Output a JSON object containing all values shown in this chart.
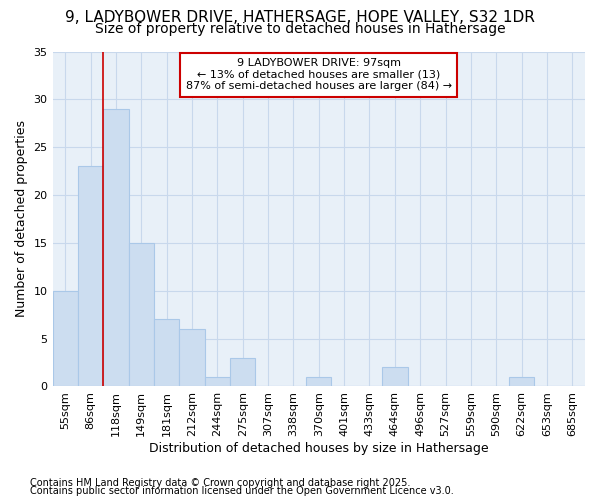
{
  "title_line1": "9, LADYBOWER DRIVE, HATHERSAGE, HOPE VALLEY, S32 1DR",
  "title_line2": "Size of property relative to detached houses in Hathersage",
  "xlabel": "Distribution of detached houses by size in Hathersage",
  "ylabel": "Number of detached properties",
  "categories": [
    "55sqm",
    "86sqm",
    "118sqm",
    "149sqm",
    "181sqm",
    "212sqm",
    "244sqm",
    "275sqm",
    "307sqm",
    "338sqm",
    "370sqm",
    "401sqm",
    "433sqm",
    "464sqm",
    "496sqm",
    "527sqm",
    "559sqm",
    "590sqm",
    "622sqm",
    "653sqm",
    "685sqm"
  ],
  "values": [
    10,
    23,
    29,
    15,
    7,
    6,
    1,
    3,
    0,
    0,
    1,
    0,
    0,
    2,
    0,
    0,
    0,
    0,
    1,
    0,
    0
  ],
  "bar_color": "#ccddf0",
  "bar_edge_color": "#aac8e8",
  "grid_color": "#c8d8ec",
  "plot_bg_color": "#e8f0f8",
  "fig_bg_color": "#ffffff",
  "red_line_index": 2,
  "annotation_text": "9 LADYBOWER DRIVE: 97sqm\n← 13% of detached houses are smaller (13)\n87% of semi-detached houses are larger (84) →",
  "annotation_box_color": "#ffffff",
  "annotation_edge_color": "#cc0000",
  "ylim": [
    0,
    35
  ],
  "yticks": [
    0,
    5,
    10,
    15,
    20,
    25,
    30,
    35
  ],
  "footer_line1": "Contains HM Land Registry data © Crown copyright and database right 2025.",
  "footer_line2": "Contains public sector information licensed under the Open Government Licence v3.0.",
  "title_fontsize": 11,
  "subtitle_fontsize": 10,
  "axis_label_fontsize": 9,
  "tick_fontsize": 8,
  "annotation_fontsize": 8,
  "footer_fontsize": 7
}
